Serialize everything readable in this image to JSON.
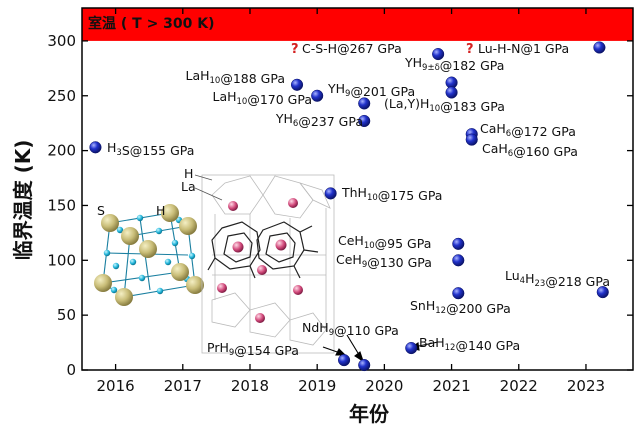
{
  "chart_data": {
    "type": "scatter",
    "title": "",
    "xlabel": "年份",
    "ylabel": "临界温度 (K)",
    "xlim": [
      2015.5,
      2023.7
    ],
    "ylim": [
      0,
      330
    ],
    "x_ticks": [
      "2016",
      "2017",
      "2018",
      "2019",
      "2020",
      "2021",
      "2022",
      "2023"
    ],
    "y_ticks": [
      "0",
      "50",
      "100",
      "150",
      "200",
      "250",
      "300"
    ],
    "grid": false,
    "band": {
      "label": "室温 ( T > 300 K)",
      "y_from": 300,
      "y_to": 330,
      "color": "#ff0000"
    },
    "marker_color": "#2233cc",
    "inset_labels": [
      "S",
      "H",
      "H",
      "La"
    ],
    "points": [
      {
        "base": "H",
        "sub": "3",
        "tail": "S@155 GPa",
        "x": 2015.7,
        "y": 203,
        "question": false
      },
      {
        "base": "LaH",
        "sub": "10",
        "tail": "@188 GPa",
        "x": 2018.7,
        "y": 260,
        "question": false
      },
      {
        "base": "LaH",
        "sub": "10",
        "tail": "@170 GPa",
        "x": 2019.0,
        "y": 250,
        "question": false
      },
      {
        "base": "YH",
        "sub": "9",
        "tail": "@201 GPa",
        "x": 2019.7,
        "y": 243,
        "question": false
      },
      {
        "base": "YH",
        "sub": "6",
        "tail": "@237 GPa",
        "x": 2019.7,
        "y": 227,
        "question": false
      },
      {
        "base": "C-S-H@267 GPa",
        "sub": "",
        "tail": "",
        "x": 2020.8,
        "y": 288,
        "question": true
      },
      {
        "base": "YH",
        "sub": "9±δ",
        "tail": "@182 GPa",
        "x": 2021.0,
        "y": 262,
        "question": false
      },
      {
        "base": "(La,Y)H",
        "sub": "10",
        "tail": "@183 GPa",
        "x": 2021.0,
        "y": 253,
        "question": false
      },
      {
        "base": "Lu-H-N@1 GPa",
        "sub": "",
        "tail": "",
        "x": 2023.2,
        "y": 294,
        "question": true
      },
      {
        "base": "CaH",
        "sub": "6",
        "tail": "@172 GPa",
        "x": 2021.3,
        "y": 215,
        "question": false
      },
      {
        "base": "CaH",
        "sub": "6",
        "tail": "@160 GPa",
        "x": 2021.3,
        "y": 210,
        "question": false
      },
      {
        "base": "ThH",
        "sub": "10",
        "tail": "@175 GPa",
        "x": 2019.2,
        "y": 161,
        "question": false
      },
      {
        "base": "CeH",
        "sub": "10",
        "tail": "@95 GPa",
        "x": 2021.1,
        "y": 115,
        "question": false
      },
      {
        "base": "CeH",
        "sub": "9",
        "tail": "@130 GPa",
        "x": 2021.1,
        "y": 100,
        "question": false
      },
      {
        "base": "Lu",
        "sub": "4",
        "tail": "H",
        "sub2": "23",
        "tail2": "@218 GPa",
        "x": 2023.25,
        "y": 71,
        "question": false
      },
      {
        "base": "SnH",
        "sub": "12",
        "tail": "@200 GPa",
        "x": 2021.1,
        "y": 70,
        "question": false
      },
      {
        "base": "NdH",
        "sub": "9",
        "tail": "@110 GPa",
        "x": 2019.7,
        "y": 4.5,
        "question": false
      },
      {
        "base": "PrH",
        "sub": "9",
        "tail": "@154 GPa",
        "x": 2019.4,
        "y": 9,
        "question": false
      },
      {
        "base": "BaH",
        "sub": "12",
        "tail": "@140 GPa",
        "x": 2020.4,
        "y": 20,
        "question": false
      }
    ]
  }
}
